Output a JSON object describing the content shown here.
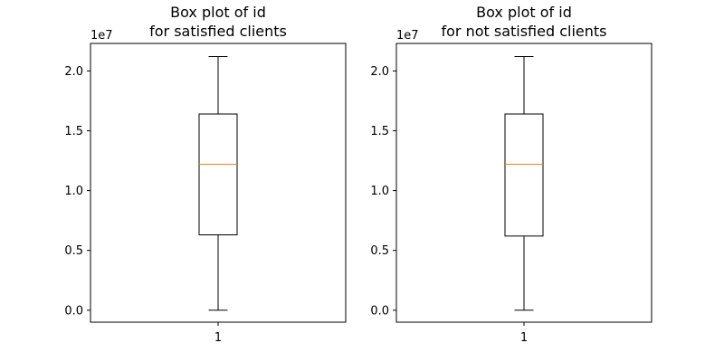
{
  "chart_data": [
    {
      "type": "boxplot",
      "title": [
        "Box plot of id",
        "for satisfied clients"
      ],
      "offset_text": "1e7",
      "ylim": [
        -0.1,
        2.23
      ],
      "yticks": [
        0.0,
        0.5,
        1.0,
        1.5,
        2.0
      ],
      "ytick_labels": [
        "0.0",
        "0.5",
        "1.0",
        "1.5",
        "2.0"
      ],
      "categories": [
        "1"
      ],
      "boxes": [
        {
          "min": 0.0,
          "q1": 0.63,
          "median": 1.22,
          "q3": 1.64,
          "max": 2.12
        }
      ],
      "colors": {
        "box": "#000000",
        "median": "#ff7f0e",
        "whisker": "#000000"
      }
    },
    {
      "type": "boxplot",
      "title": [
        "Box plot of id",
        "for not satisfied clients"
      ],
      "offset_text": "1e7",
      "ylim": [
        -0.1,
        2.23
      ],
      "yticks": [
        0.0,
        0.5,
        1.0,
        1.5,
        2.0
      ],
      "ytick_labels": [
        "0.0",
        "0.5",
        "1.0",
        "1.5",
        "2.0"
      ],
      "categories": [
        "1"
      ],
      "boxes": [
        {
          "min": 0.0,
          "q1": 0.62,
          "median": 1.22,
          "q3": 1.64,
          "max": 2.12
        }
      ],
      "colors": {
        "box": "#000000",
        "median": "#ff7f0e",
        "whisker": "#000000"
      }
    }
  ]
}
